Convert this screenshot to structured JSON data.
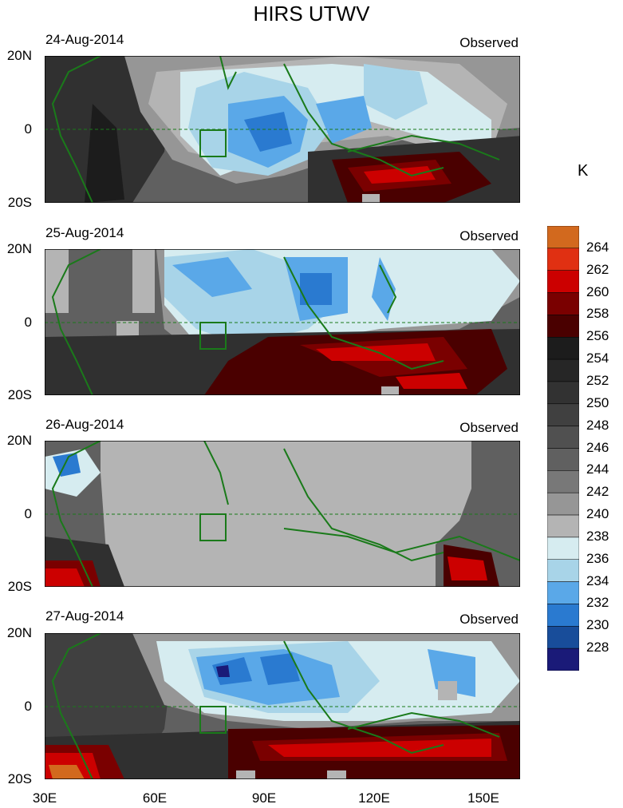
{
  "title": "HIRS UTWV",
  "colorbar": {
    "unit": "K",
    "levels": [
      "264",
      "262",
      "260",
      "258",
      "256",
      "254",
      "252",
      "250",
      "248",
      "246",
      "244",
      "242",
      "240",
      "238",
      "236",
      "234",
      "232",
      "230",
      "228"
    ],
    "colors": [
      "#d2691e",
      "#e03012",
      "#cc0000",
      "#7a0000",
      "#4a0000",
      "#1c1c1c",
      "#262626",
      "#323232",
      "#404040",
      "#505050",
      "#606060",
      "#787878",
      "#969696",
      "#b4b4b4",
      "#d6ecf0",
      "#a8d4e8",
      "#5aa8e8",
      "#2a7ad0",
      "#184d9a",
      "#1a1a78"
    ]
  },
  "chart_data": {
    "type": "heatmap",
    "title": "HIRS UTWV",
    "xlabel": "",
    "ylabel": "",
    "xticks": [
      "30E",
      "60E",
      "90E",
      "120E",
      "150E"
    ],
    "yticks": [
      "20N",
      "0",
      "20S"
    ],
    "xlim": [
      30,
      160
    ],
    "ylim": [
      -20,
      20
    ],
    "unit": "K",
    "panels": [
      {
        "date": "24-Aug-2014",
        "label": "Observed",
        "missing_fraction": 0.01
      },
      {
        "date": "25-Aug-2014",
        "label": "Observed",
        "missing_fraction": 0.12
      },
      {
        "date": "26-Aug-2014",
        "label": "Observed",
        "missing_fraction": 0.85
      },
      {
        "date": "27-Aug-2014",
        "label": "Observed",
        "missing_fraction": 0.02
      }
    ]
  }
}
